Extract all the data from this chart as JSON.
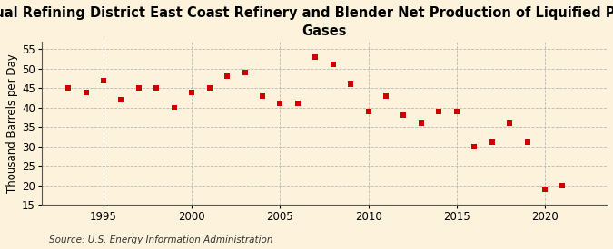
{
  "title_line1": "Annual Refining District East Coast Refinery and Blender Net Production of Liquified Petroleum",
  "title_line2": "Gases",
  "ylabel": "Thousand Barrels per Day",
  "source": "Source: U.S. Energy Information Administration",
  "background_color": "#fdf3dc",
  "marker_color": "#cc0000",
  "years": [
    1993,
    1994,
    1995,
    1996,
    1997,
    1998,
    1999,
    2000,
    2001,
    2002,
    2003,
    2004,
    2005,
    2006,
    2007,
    2008,
    2009,
    2010,
    2011,
    2012,
    2013,
    2014,
    2015,
    2016,
    2017,
    2018,
    2019,
    2020,
    2021
  ],
  "values": [
    45.0,
    44.0,
    47.0,
    42.0,
    45.0,
    45.0,
    40.0,
    44.0,
    45.0,
    48.0,
    49.0,
    43.0,
    41.0,
    41.0,
    53.0,
    51.0,
    46.0,
    39.0,
    43.0,
    38.0,
    36.0,
    39.0,
    39.0,
    30.0,
    31.0,
    36.0,
    31.0,
    19.0,
    20.0
  ],
  "ylim": [
    15,
    57
  ],
  "yticks": [
    15,
    20,
    25,
    30,
    35,
    40,
    45,
    50,
    55
  ],
  "xlim": [
    1991.5,
    2023.5
  ],
  "xticks": [
    1995,
    2000,
    2005,
    2010,
    2015,
    2020
  ],
  "grid_color": "#aaaaaa",
  "title_fontsize": 10.5,
  "label_fontsize": 8.5,
  "tick_fontsize": 8.5,
  "source_fontsize": 7.5
}
